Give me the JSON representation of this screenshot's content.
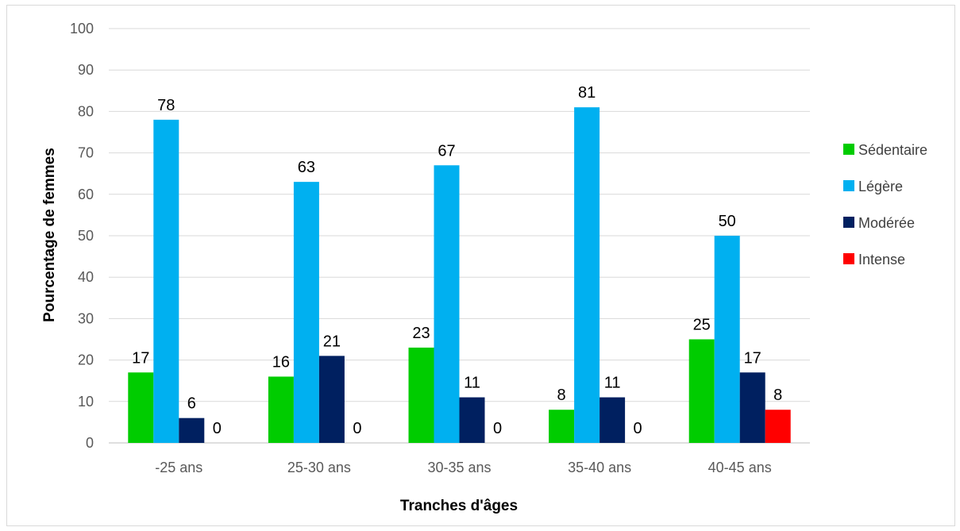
{
  "chart_data": {
    "type": "bar",
    "title": "",
    "xlabel": "Tranches d'âges",
    "ylabel": "Pourcentage de femmes",
    "ylim": [
      0,
      100
    ],
    "yticks": [
      "0",
      "10",
      "20",
      "30",
      "40",
      "50",
      "60",
      "70",
      "80",
      "90",
      "100"
    ],
    "grid": true,
    "legend_position": "right",
    "categories": [
      "-25 ans",
      "25-30 ans",
      "30-35 ans",
      "35-40 ans",
      "40-45 ans"
    ],
    "series": [
      {
        "name": "Sédentaire",
        "color": "#00cc00",
        "values": [
          17,
          16,
          23,
          8,
          25
        ],
        "labels": [
          "17",
          "16",
          "23",
          "8",
          "25"
        ]
      },
      {
        "name": "Légère",
        "color": "#00b0f0",
        "values": [
          78,
          63,
          67,
          81,
          50
        ],
        "labels": [
          "78",
          "63",
          "67",
          "81",
          "50"
        ]
      },
      {
        "name": "Modérée",
        "color": "#002060",
        "values": [
          6,
          21,
          11,
          11,
          17
        ],
        "labels": [
          "6",
          "21",
          "11",
          "11",
          "17"
        ]
      },
      {
        "name": "Intense",
        "color": "#ff0000",
        "values": [
          0,
          0,
          0,
          0,
          8
        ],
        "labels": [
          "0",
          "0",
          "0",
          "0",
          "8"
        ]
      }
    ]
  }
}
